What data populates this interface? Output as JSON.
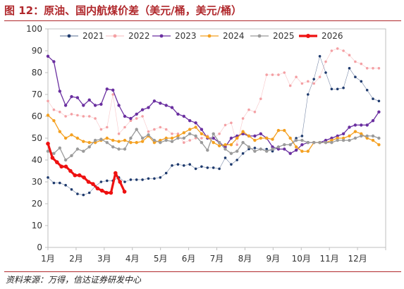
{
  "figure": {
    "title": "图 12：原油、国内航煤价差（美元/桶，美元/桶）",
    "source": "资料来源：万得，信达证券研发中心"
  },
  "chart_data": {
    "type": "line",
    "title": "图 12：原油、国内航煤价差（美元/桶，美元/桶）",
    "xlabel": "",
    "ylabel": "",
    "ylim": [
      0,
      100
    ],
    "yticks": [
      0,
      10,
      20,
      30,
      40,
      50,
      60,
      70,
      80,
      90,
      100
    ],
    "xlim": [
      1,
      13
    ],
    "xtick_labels": [
      "1月",
      "2月",
      "3月",
      "4月",
      "5月",
      "6月",
      "7月",
      "8月",
      "9月",
      "10月",
      "11月",
      "12月"
    ],
    "grid": false,
    "legend_position": "top",
    "series": [
      {
        "name": "2021",
        "color": "#1f3b6e",
        "style": "dotted-marker",
        "x": [
          1.0,
          1.21,
          1.42,
          1.63,
          1.84,
          2.05,
          2.26,
          2.47,
          2.68,
          2.89,
          3.1,
          3.31,
          3.52,
          3.73,
          3.94,
          4.15,
          4.36,
          4.57,
          4.78,
          4.99,
          5.2,
          5.41,
          5.62,
          5.83,
          6.04,
          6.25,
          6.46,
          6.67,
          6.88,
          7.09,
          7.3,
          7.51,
          7.72,
          7.93,
          8.14,
          8.35,
          8.56,
          8.77,
          8.98,
          9.19,
          9.4,
          9.61,
          9.82,
          10.03,
          10.24,
          10.45,
          10.66,
          10.87,
          11.08,
          11.29,
          11.5,
          11.71,
          11.92,
          12.13,
          12.34,
          12.55,
          12.76
        ],
        "y": [
          32,
          29.5,
          29.5,
          28.5,
          26.5,
          24.5,
          24,
          25,
          28,
          30,
          30.5,
          30.5,
          32,
          30,
          31,
          31,
          31,
          31.5,
          31.5,
          32,
          34,
          37.5,
          38,
          37.5,
          38,
          36,
          37,
          36.5,
          36.5,
          36,
          41,
          38,
          40,
          43,
          45,
          45.5,
          45,
          45,
          44,
          46,
          47,
          47,
          50,
          51,
          70,
          77,
          87.5,
          80,
          72.5,
          72.5,
          73,
          82,
          78,
          76,
          72,
          68,
          67
        ]
      },
      {
        "name": "2022",
        "color": "#f4a0a4",
        "style": "dotted-marker",
        "x": [
          1.0,
          1.21,
          1.42,
          1.63,
          1.84,
          2.05,
          2.26,
          2.47,
          2.68,
          2.89,
          3.1,
          3.31,
          3.52,
          3.73,
          3.94,
          4.15,
          4.36,
          4.57,
          4.78,
          4.99,
          5.2,
          5.41,
          5.62,
          5.83,
          6.04,
          6.25,
          6.46,
          6.67,
          6.88,
          7.09,
          7.3,
          7.51,
          7.72,
          7.93,
          8.14,
          8.35,
          8.56,
          8.77,
          8.98,
          9.19,
          9.4,
          9.61,
          9.82,
          10.03,
          10.24,
          10.45,
          10.66,
          10.87,
          11.08,
          11.29,
          11.5,
          11.71,
          11.92,
          12.13,
          12.34,
          12.55,
          12.76
        ],
        "y": [
          67,
          63,
          62,
          60,
          61,
          60.5,
          60,
          60,
          59,
          54,
          55,
          70,
          52,
          55,
          58,
          59,
          60,
          53,
          54,
          55,
          54,
          52,
          52,
          48,
          49,
          50,
          50,
          51,
          50,
          52,
          56,
          57,
          47,
          59,
          63,
          62,
          68,
          79,
          79,
          79,
          80,
          74,
          78,
          75,
          76,
          75,
          78,
          85,
          90,
          91,
          90,
          88,
          85,
          84,
          82,
          82,
          82
        ]
      },
      {
        "name": "2023",
        "color": "#6a2fa0",
        "style": "line-marker",
        "x": [
          1.0,
          1.21,
          1.42,
          1.63,
          1.84,
          2.05,
          2.26,
          2.47,
          2.68,
          2.89,
          3.1,
          3.31,
          3.52,
          3.73,
          3.94,
          4.15,
          4.36,
          4.57,
          4.78,
          4.99,
          5.2,
          5.41,
          5.62,
          5.83,
          6.04,
          6.25,
          6.46,
          6.67,
          6.88,
          7.09,
          7.3,
          7.51,
          7.72,
          7.93,
          8.14,
          8.35,
          8.56,
          8.77,
          8.98,
          9.19,
          9.4,
          9.61,
          9.82,
          10.03,
          10.24,
          10.45,
          10.66,
          10.87,
          11.08,
          11.29,
          11.5,
          11.71,
          11.92,
          12.13,
          12.34,
          12.55,
          12.76
        ],
        "y": [
          87.5,
          85,
          71.5,
          65,
          69,
          68.5,
          65,
          67.5,
          65,
          65.5,
          72.5,
          72,
          65,
          60,
          59,
          61,
          63,
          64,
          67,
          66,
          65,
          64,
          61,
          60,
          58,
          57,
          54,
          50,
          50,
          48,
          46,
          50,
          51,
          52,
          51,
          51,
          52,
          50,
          46,
          45,
          45,
          43,
          44.5,
          47,
          48,
          48,
          48,
          49,
          50,
          51,
          52,
          55,
          56,
          56,
          56,
          58,
          62
        ]
      },
      {
        "name": "2024",
        "color": "#f4a020",
        "style": "line-marker",
        "x": [
          1.0,
          1.21,
          1.42,
          1.63,
          1.84,
          2.05,
          2.26,
          2.47,
          2.68,
          2.89,
          3.1,
          3.31,
          3.52,
          3.73,
          3.94,
          4.15,
          4.36,
          4.57,
          4.78,
          4.99,
          5.2,
          5.41,
          5.62,
          5.83,
          6.04,
          6.25,
          6.46,
          6.67,
          6.88,
          7.09,
          7.3,
          7.51,
          7.72,
          7.93,
          8.14,
          8.35,
          8.56,
          8.77,
          8.98,
          9.19,
          9.4,
          9.61,
          9.82,
          10.03,
          10.24,
          10.45,
          10.66,
          10.87,
          11.08,
          11.29,
          11.5,
          11.71,
          11.92,
          12.13,
          12.34,
          12.55,
          12.76
        ],
        "y": [
          60.5,
          58,
          53,
          50,
          51.5,
          50,
          48.5,
          48,
          48,
          49,
          50,
          49,
          48.5,
          49,
          48,
          48,
          48.5,
          51,
          48,
          49,
          50,
          50,
          51,
          52.5,
          54,
          55,
          52,
          50.5,
          48,
          46.5,
          47,
          47,
          50,
          53,
          51,
          49,
          50,
          50,
          49.5,
          53.5,
          53.5,
          50,
          46,
          44,
          44,
          48,
          48,
          48,
          49,
          50,
          50,
          51,
          53,
          52,
          50,
          49,
          47
        ]
      },
      {
        "name": "2025",
        "color": "#9a9a9a",
        "style": "line-marker",
        "x": [
          1.0,
          1.21,
          1.42,
          1.63,
          1.84,
          2.05,
          2.26,
          2.47,
          2.68,
          2.89,
          3.1,
          3.31,
          3.52,
          3.73,
          3.94,
          4.15,
          4.36,
          4.57,
          4.78,
          4.99,
          5.2,
          5.41,
          5.62,
          5.83,
          6.04,
          6.25,
          6.46,
          6.67,
          6.88,
          7.09,
          7.3,
          7.51,
          7.72,
          7.93,
          8.14,
          8.35,
          8.56,
          8.77,
          8.98,
          9.19,
          9.4,
          9.61,
          9.82,
          10.03,
          10.24,
          10.45,
          10.66,
          10.87,
          11.08,
          11.29,
          11.5,
          11.71,
          11.92,
          12.13,
          12.34,
          12.55,
          12.76
        ],
        "y": [
          44,
          43,
          45.5,
          40,
          42,
          45,
          44,
          46,
          49,
          49.5,
          48,
          46,
          45,
          45,
          50,
          54,
          50,
          51.5,
          49,
          48,
          49,
          48.5,
          50,
          50,
          52,
          51,
          48,
          44.5,
          52,
          48,
          45,
          43,
          44,
          48,
          46,
          44,
          45,
          44,
          45,
          46,
          47,
          47,
          49,
          49,
          48,
          48,
          48,
          48,
          48,
          49,
          49,
          49,
          50,
          51,
          51,
          51,
          50
        ]
      },
      {
        "name": "2026",
        "color": "#ee1111",
        "style": "thick-line-marker",
        "x": [
          1.0,
          1.16,
          1.32,
          1.48,
          1.64,
          1.8,
          1.96,
          2.12,
          2.28,
          2.44,
          2.6,
          2.76,
          2.92,
          3.08,
          3.24,
          3.4,
          3.56,
          3.72
        ],
        "y": [
          47.5,
          41,
          39,
          37,
          37,
          35,
          33,
          33,
          32,
          30,
          29,
          27,
          26,
          25,
          25,
          34,
          30,
          25.5
        ]
      }
    ]
  }
}
